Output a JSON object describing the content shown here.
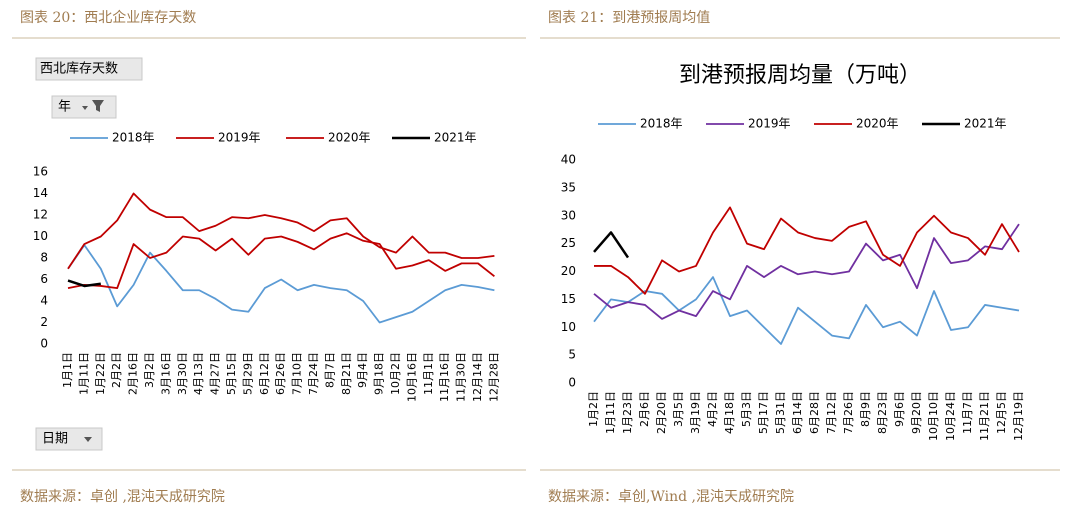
{
  "header": {
    "left": "图表 20：西北企业库存天数",
    "right": "图表 21：到港预报周均值"
  },
  "footer": {
    "left": "数据来源：卓创 ,混沌天成研究院",
    "right": "数据来源：卓创,Wind ,混沌天成研究院"
  },
  "chart_data": [
    {
      "type": "line",
      "title": "西北库存天数",
      "filters": [
        "年",
        "日期"
      ],
      "categories": [
        "1月1日",
        "1月11日",
        "1月22日",
        "2月2日",
        "2月16日",
        "3月2日",
        "3月16日",
        "3月30日",
        "4月13日",
        "4月27日",
        "5月15日",
        "5月29日",
        "6月12日",
        "6月26日",
        "7月10日",
        "7月24日",
        "8月7日",
        "8月21日",
        "9月4日",
        "9月18日",
        "10月2日",
        "10月16日",
        "11月1日",
        "11月16日",
        "11月30日",
        "12月14日",
        "12月28日"
      ],
      "series": [
        {
          "name": "2018年",
          "color": "#5b9bd5",
          "values": [
            7,
            9.2,
            7,
            3.5,
            5.5,
            8.5,
            6.8,
            5,
            5,
            4.2,
            3.2,
            3,
            5.2,
            6,
            5,
            5.5,
            5.2,
            5,
            4,
            2,
            2.5,
            3,
            4,
            5,
            5.5,
            5.3,
            5
          ]
        },
        {
          "name": "2019年",
          "color": "#c00000",
          "values": [
            7,
            9.3,
            10,
            11.5,
            14,
            12.5,
            11.8,
            11.8,
            10.5,
            11,
            11.8,
            11.7,
            12,
            11.7,
            11.3,
            10.5,
            11.5,
            11.7,
            10,
            9,
            8.5,
            10,
            8.5,
            8.5,
            8,
            8,
            8.2
          ]
        },
        {
          "name": "2020年",
          "color": "#c00000",
          "values": [
            5.2,
            5.5,
            5.4,
            5.2,
            9.3,
            8,
            8.5,
            10,
            9.8,
            8.7,
            9.8,
            8.3,
            9.8,
            10,
            9.5,
            8.8,
            9.8,
            10.3,
            9.6,
            9.3,
            7,
            7.3,
            7.8,
            6.8,
            7.5,
            7.5,
            6.3
          ]
        },
        {
          "name": "2021年",
          "color": "#000000",
          "values": [
            5.9,
            5.4,
            5.6,
            null,
            null,
            null,
            null,
            null,
            null,
            null,
            null,
            null,
            null,
            null,
            null,
            null,
            null,
            null,
            null,
            null,
            null,
            null,
            null,
            null,
            null,
            null,
            null
          ]
        }
      ],
      "ylim": [
        0,
        16
      ],
      "yticks": [
        0,
        2,
        4,
        6,
        8,
        10,
        12,
        14,
        16
      ],
      "grid": false,
      "legend": "top"
    },
    {
      "type": "line",
      "title": "到港预报周均量（万吨）",
      "categories": [
        "1月2日",
        "1月11日",
        "1月23日",
        "2月6日",
        "2月20日",
        "3月5日",
        "3月19日",
        "4月2日",
        "4月18日",
        "5月3日",
        "5月17日",
        "5月31日",
        "6月14日",
        "6月28日",
        "7月12日",
        "7月26日",
        "8月9日",
        "8月23日",
        "9月6日",
        "9月20日",
        "10月10日",
        "10月24日",
        "11月7日",
        "11月21日",
        "12月5日",
        "12月19日"
      ],
      "series": [
        {
          "name": "2018年",
          "color": "#5b9bd5",
          "values": [
            11,
            15,
            14.5,
            16.5,
            16,
            13,
            15,
            19,
            12,
            13,
            10,
            7,
            13.5,
            11,
            8.5,
            8,
            14,
            10,
            11,
            8.5,
            16.5,
            9.5,
            10,
            14,
            13.5,
            13
          ]
        },
        {
          "name": "2019年",
          "color": "#7030a0",
          "values": [
            16,
            13.5,
            14.5,
            14,
            11.5,
            13,
            12,
            16.5,
            15,
            21,
            19,
            21,
            19.5,
            20,
            19.5,
            20,
            25,
            22,
            23,
            17,
            26,
            21.5,
            22,
            24.5,
            24,
            28.5
          ]
        },
        {
          "name": "2020年",
          "color": "#c00000",
          "values": [
            21,
            21,
            19,
            16,
            22,
            20,
            21,
            27,
            31.5,
            25,
            24,
            29.5,
            27,
            26,
            25.5,
            28,
            29,
            23,
            21,
            27,
            30,
            27,
            26,
            23,
            28.5,
            23.5
          ]
        },
        {
          "name": "2021年",
          "color": "#000000",
          "values": [
            23.5,
            27,
            22.5,
            null,
            null,
            null,
            null,
            null,
            null,
            null,
            null,
            null,
            null,
            null,
            null,
            null,
            null,
            null,
            null,
            null,
            null,
            null,
            null,
            null,
            null,
            null
          ]
        }
      ],
      "ylim": [
        0,
        40
      ],
      "yticks": [
        0,
        5,
        10,
        15,
        20,
        25,
        30,
        35,
        40
      ],
      "grid": false,
      "legend": "top"
    }
  ]
}
